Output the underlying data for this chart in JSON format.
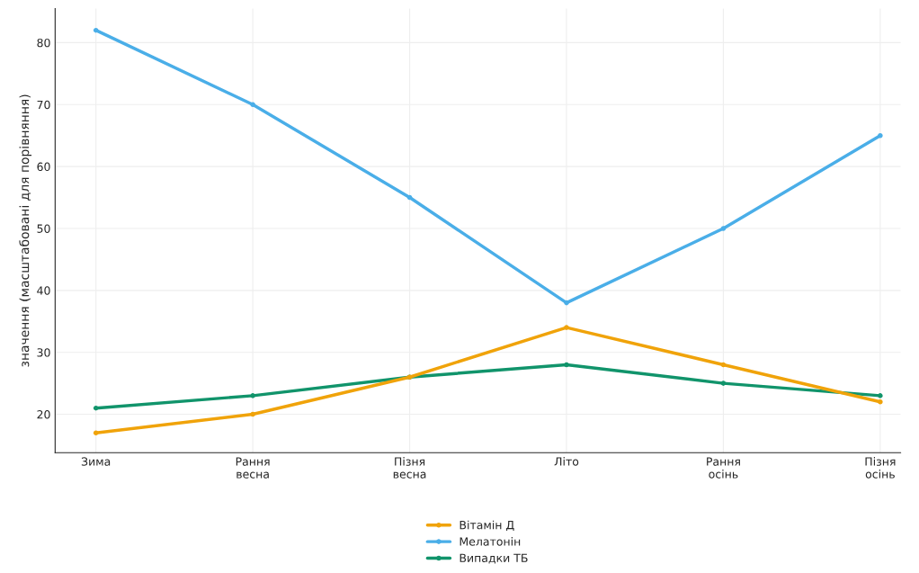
{
  "chart_data": {
    "type": "line",
    "ylabel": "значення (масштабовані для порівняння)",
    "categories": [
      "Зима",
      "Рання\nвесна",
      "Пізня\nвесна",
      "Літо",
      "Рання\nосінь",
      "Пізня\nосінь"
    ],
    "series": [
      {
        "name": "Вітамін Д",
        "color": "#f0a30a",
        "values": [
          17,
          20,
          26,
          34,
          28,
          22
        ]
      },
      {
        "name": "Мелатонін",
        "color": "#4aaee8",
        "values": [
          82,
          70,
          55,
          38,
          50,
          65
        ]
      },
      {
        "name": "Випадки ТБ",
        "color": "#11946b",
        "values": [
          21,
          23,
          26,
          28,
          25,
          23
        ]
      }
    ],
    "ylim": [
      13.8,
      85.5
    ],
    "yticks": [
      20,
      30,
      40,
      50,
      60,
      70,
      80
    ],
    "grid": true,
    "legend": "bottom",
    "marker": "circle"
  }
}
